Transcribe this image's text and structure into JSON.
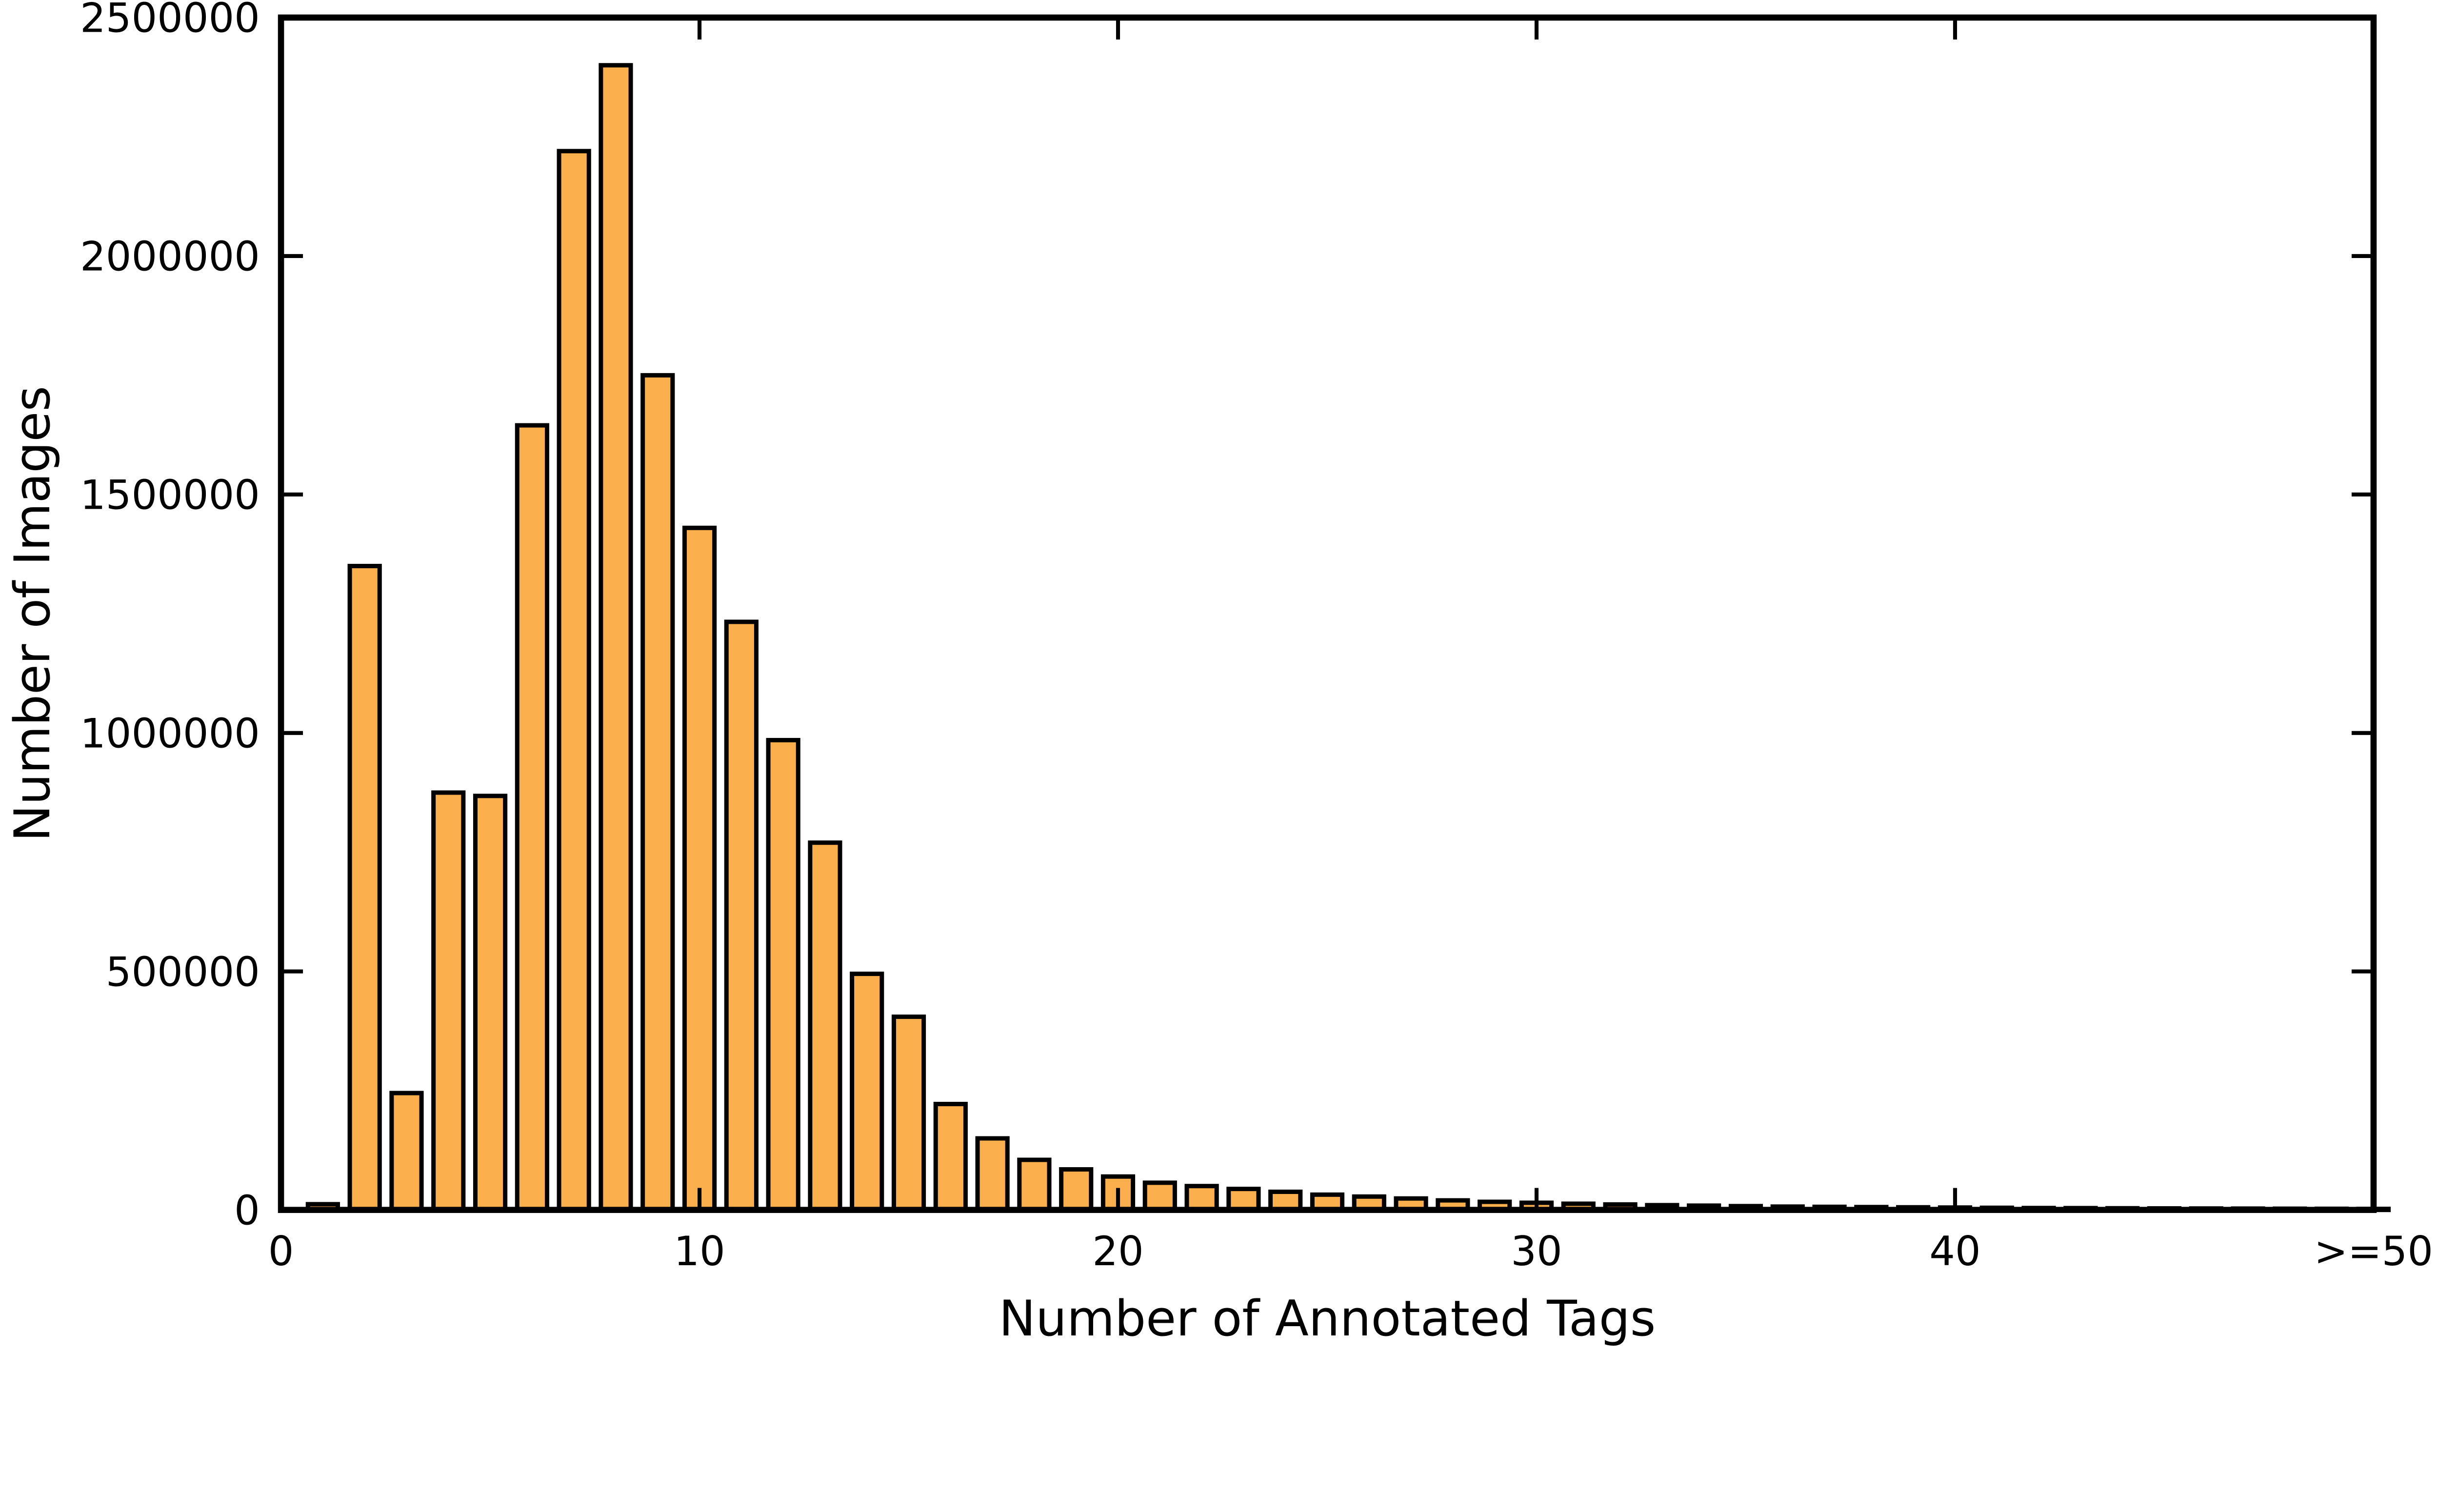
{
  "chart_data": {
    "type": "bar",
    "title": "",
    "xlabel": "Number of Annotated Tags",
    "ylabel": "Number of Images",
    "x": [
      1,
      2,
      3,
      4,
      5,
      6,
      7,
      8,
      9,
      10,
      11,
      12,
      13,
      14,
      15,
      16,
      17,
      18,
      19,
      20,
      21,
      22,
      23,
      24,
      25,
      26,
      27,
      28,
      29,
      30,
      31,
      32,
      33,
      34,
      35,
      36,
      37,
      38,
      39,
      40,
      41,
      42,
      43,
      44,
      45,
      46,
      47,
      48,
      49,
      50
    ],
    "values": [
      12000,
      1350000,
      245000,
      875000,
      868000,
      1645000,
      2220000,
      2400000,
      1750000,
      1430000,
      1233000,
      985000,
      770000,
      495000,
      405000,
      222000,
      150000,
      105000,
      85000,
      70000,
      57000,
      50000,
      44000,
      38000,
      32000,
      28000,
      24000,
      20000,
      17000,
      15000,
      13000,
      11500,
      10000,
      9000,
      8000,
      7000,
      6500,
      6000,
      5500,
      5000,
      4500,
      4000,
      3800,
      3500,
      3200,
      3000,
      2800,
      2600,
      2400,
      2200
    ],
    "xlim": [
      0,
      50
    ],
    "ylim": [
      0,
      2500000
    ],
    "xticks": {
      "positions": [
        0,
        10,
        20,
        30,
        40,
        50
      ],
      "labels": [
        "0",
        "10",
        "20",
        "30",
        "40",
        ">=50"
      ]
    },
    "yticks": {
      "positions": [
        0,
        500000,
        1000000,
        1500000,
        2000000,
        2500000
      ],
      "labels": [
        "0",
        "500000",
        "1000000",
        "1500000",
        "2000000",
        "2500000"
      ]
    },
    "bar_color": "#FBAE4C",
    "bar_edge_color": "#000000",
    "axis_color": "#000000",
    "background": "#FFFFFF",
    "grid": false,
    "legend_position": "none",
    "tick_direction": "in"
  }
}
